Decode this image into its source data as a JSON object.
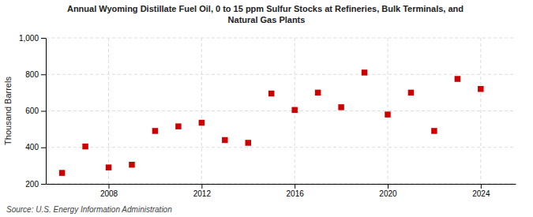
{
  "chart_data": {
    "type": "scatter",
    "title": "Annual Wyoming Distillate Fuel Oil, 0 to 15 ppm Sulfur Stocks at Refineries, Bulk Terminals, and\nNatural Gas Plants",
    "y_label": "Thousand Barrels",
    "annotations": [
      "Source: U.S. Energy Information Administration"
    ],
    "x": [
      2006,
      2007,
      2008,
      2009,
      2010,
      2011,
      2012,
      2013,
      2014,
      2015,
      2016,
      2017,
      2018,
      2019,
      2020,
      2021,
      2022,
      2023,
      2024
    ],
    "values": [
      260,
      405,
      290,
      305,
      490,
      515,
      535,
      440,
      425,
      695,
      605,
      700,
      620,
      810,
      580,
      700,
      490,
      775,
      720
    ],
    "color": "#cc0000",
    "marker": "square",
    "xlim": [
      2005.3,
      2025.5
    ],
    "xticks": [
      2008,
      2012,
      2016,
      2020,
      2024
    ],
    "ylim": [
      200,
      1000
    ],
    "yticks": [
      200,
      400,
      600,
      800,
      {
        "value": 1000,
        "label": "1,000"
      }
    ],
    "grid": true
  }
}
